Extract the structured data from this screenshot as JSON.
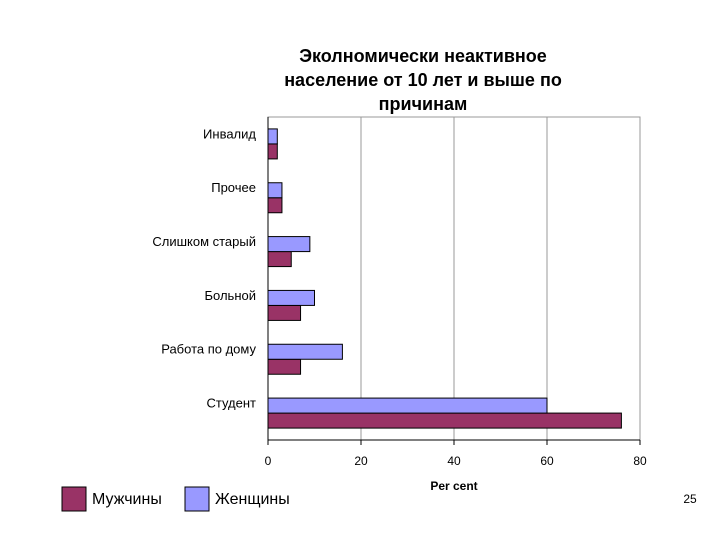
{
  "chart_data": {
    "type": "hbar",
    "title": "Эколномически неактивное\nнаселение от 10 лет и выше по\nпричинам",
    "categories": [
      "Инвалид",
      "Прочее",
      "Слишком старый",
      "Больной",
      "Работа по дому",
      "Студент"
    ],
    "series": [
      {
        "name": "Мужчины",
        "color": "#993366",
        "values": [
          2,
          3,
          5,
          7,
          7,
          76
        ]
      },
      {
        "name": "Женщины",
        "color": "#9999ff",
        "values": [
          2,
          3,
          9,
          10,
          16,
          60
        ]
      }
    ],
    "xlim": [
      0,
      80
    ],
    "xticks": [
      0,
      20,
      40,
      60,
      80
    ],
    "xlabel": "Per cent",
    "grid": true,
    "legend": "bottom-left"
  },
  "page_number": "25"
}
